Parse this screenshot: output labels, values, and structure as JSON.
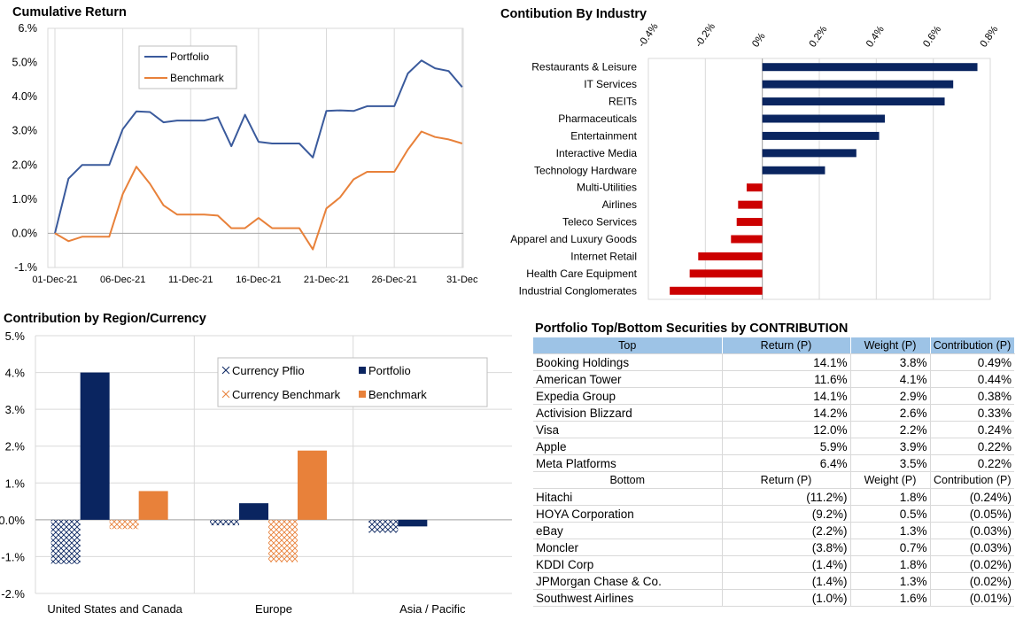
{
  "line_chart": {
    "title": "Cumulative Return",
    "legend": [
      "Portfolio",
      "Benchmark"
    ],
    "colors": {
      "portfolio": "#3a5a9c",
      "benchmark": "#e8813a"
    }
  },
  "industry_chart": {
    "title": "Contibution By Industry",
    "colors": {
      "positive": "#0a2560",
      "negative": "#cc0000"
    }
  },
  "region_chart": {
    "title": "Contribution by Region/Currency",
    "legend": [
      "Currency Pflio",
      "Portfolio",
      "Currency Benchmark",
      "Benchmark"
    ],
    "colors": {
      "currency_pflio": "#0a2560",
      "portfolio": "#0a2560",
      "currency_benchmark": "#e8813a",
      "benchmark": "#e8813a"
    }
  },
  "table": {
    "title": "Portfolio Top/Bottom Securities by CONTRIBUTION",
    "top_header": [
      "Top",
      "Return (P)",
      "Weight (P)",
      "Contribution (P)"
    ],
    "top_rows": [
      [
        "Booking Holdings",
        "14.1%",
        "3.8%",
        "0.49%"
      ],
      [
        "American Tower",
        "11.6%",
        "4.1%",
        "0.44%"
      ],
      [
        "Expedia Group",
        "14.1%",
        "2.9%",
        "0.38%"
      ],
      [
        "Activision Blizzard",
        "14.2%",
        "2.6%",
        "0.33%"
      ],
      [
        "Visa",
        "12.0%",
        "2.2%",
        "0.24%"
      ],
      [
        "Apple",
        "5.9%",
        "3.9%",
        "0.22%"
      ],
      [
        "Meta Platforms",
        "6.4%",
        "3.5%",
        "0.22%"
      ]
    ],
    "bottom_header": [
      "Bottom",
      "Return (P)",
      "Weight (P)",
      "Contribution (P)"
    ],
    "bottom_rows": [
      [
        "Hitachi",
        "(11.2%)",
        "1.8%",
        "(0.24%)"
      ],
      [
        "HOYA Corporation",
        "(9.2%)",
        "0.5%",
        "(0.05%)"
      ],
      [
        "eBay",
        "(2.2%)",
        "1.3%",
        "(0.03%)"
      ],
      [
        "Moncler",
        "(3.8%)",
        "0.7%",
        "(0.03%)"
      ],
      [
        "KDDI Corp",
        "(1.4%)",
        "1.8%",
        "(0.02%)"
      ],
      [
        "JPMorgan Chase & Co.",
        "(1.4%)",
        "1.3%",
        "(0.02%)"
      ],
      [
        "Southwest Airlines",
        "(1.0%)",
        "1.6%",
        "(0.01%)"
      ]
    ]
  },
  "chart_data": [
    {
      "type": "line",
      "title": "Cumulative Return",
      "xlabel": "",
      "ylabel": "",
      "x": [
        "01-Dec-21",
        "02-Dec-21",
        "03-Dec-21",
        "04-Dec-21",
        "05-Dec-21",
        "06-Dec-21",
        "07-Dec-21",
        "08-Dec-21",
        "09-Dec-21",
        "10-Dec-21",
        "11-Dec-21",
        "12-Dec-21",
        "13-Dec-21",
        "14-Dec-21",
        "15-Dec-21",
        "16-Dec-21",
        "17-Dec-21",
        "18-Dec-21",
        "19-Dec-21",
        "20-Dec-21",
        "21-Dec-21",
        "22-Dec-21",
        "23-Dec-21",
        "24-Dec-21",
        "25-Dec-21",
        "26-Dec-21",
        "27-Dec-21",
        "28-Dec-21",
        "29-Dec-21",
        "30-Dec-21",
        "31-Dec-21"
      ],
      "x_tick_labels": [
        "01-Dec-21",
        "06-Dec-21",
        "11-Dec-21",
        "16-Dec-21",
        "21-Dec-21",
        "26-Dec-21",
        "31-Dec"
      ],
      "series": [
        {
          "name": "Portfolio",
          "values": [
            0.0,
            1.6,
            2.0,
            2.0,
            2.0,
            3.05,
            3.57,
            3.55,
            3.25,
            3.3,
            3.3,
            3.3,
            3.4,
            2.55,
            3.47,
            2.68,
            2.63,
            2.63,
            2.63,
            2.22,
            3.58,
            3.6,
            3.58,
            3.72,
            3.72,
            3.72,
            4.68,
            5.06,
            4.83,
            4.75,
            4.28
          ]
        },
        {
          "name": "Benchmark",
          "values": [
            0.0,
            -0.23,
            -0.1,
            -0.1,
            -0.1,
            1.15,
            1.95,
            1.45,
            0.82,
            0.55,
            0.55,
            0.55,
            0.52,
            0.15,
            0.15,
            0.45,
            0.15,
            0.15,
            0.15,
            -0.47,
            0.73,
            1.05,
            1.58,
            1.8,
            1.8,
            1.8,
            2.45,
            2.98,
            2.82,
            2.75,
            2.63
          ]
        }
      ],
      "ylim": [
        -1,
        6
      ],
      "y_tick_labels": [
        "-1.%",
        "0.0%",
        "1.0%",
        "2.0%",
        "3.0%",
        "4.0%",
        "5.0%",
        "6.%"
      ],
      "grid": "vertical",
      "legend_position": "top-left"
    },
    {
      "type": "bar",
      "orientation": "horizontal",
      "title": "Contibution By Industry",
      "categories": [
        "Restaurants & Leisure",
        "IT Services",
        "REITs",
        "Pharmaceuticals",
        "Entertainment",
        "Interactive Media",
        "Technology Hardware",
        "Multi-Utilities",
        "Airlines",
        "Teleco Services",
        "Apparel and Luxury Goods",
        "Internet Retail",
        "Health Care Equipment",
        "Industrial Conglomerates"
      ],
      "values": [
        0.755,
        0.67,
        0.64,
        0.43,
        0.41,
        0.33,
        0.22,
        -0.055,
        -0.085,
        -0.09,
        -0.11,
        -0.225,
        -0.255,
        -0.325
      ],
      "xlim": [
        -0.4,
        0.8
      ],
      "x_tick_labels": [
        "-0.4%",
        "-0.2%",
        "0%",
        "0.2%",
        "0.4%",
        "0.6%",
        "0.8%"
      ],
      "grid": "vertical"
    },
    {
      "type": "bar",
      "title": "Contribution by Region/Currency",
      "categories": [
        "United States and Canada",
        "Europe",
        "Asia / Pacific"
      ],
      "series": [
        {
          "name": "Currency Pflio",
          "values": [
            -1.2,
            -0.15,
            -0.35
          ]
        },
        {
          "name": "Portfolio",
          "values": [
            4.0,
            0.45,
            -0.18
          ]
        },
        {
          "name": "Currency Benchmark",
          "values": [
            -0.25,
            -1.15,
            0.0
          ]
        },
        {
          "name": "Benchmark",
          "values": [
            0.78,
            1.88,
            0.0
          ]
        }
      ],
      "ylim": [
        -2,
        5
      ],
      "y_tick_labels": [
        "-2.%",
        "-1.%",
        "0.0%",
        "1.%",
        "2.%",
        "3.%",
        "4.%",
        "5.%"
      ],
      "grid": "horizontal",
      "legend_position": "top-right"
    }
  ]
}
